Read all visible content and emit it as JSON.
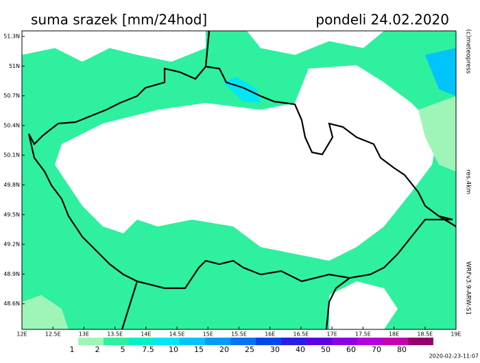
{
  "header": {
    "title": "suma srazek [mm/24hod]",
    "date": "pondeli 24.02.2020"
  },
  "side_labels": {
    "copyright": "(c)meteopress",
    "resolution": "res.4km",
    "model": "WRFv3.9-ARW-S1"
  },
  "map": {
    "lat_labels": [
      "51.3N",
      "51N",
      "50.7N",
      "50.4N",
      "50.1N",
      "49.8N",
      "49.5N",
      "49.2N",
      "48.9N",
      "48.6N"
    ],
    "lon_labels": [
      "12E",
      "12.5E",
      "13E",
      "13.5E",
      "14E",
      "14.5E",
      "15E",
      "15.5E",
      "16E",
      "16.5E",
      "17E",
      "17.5E",
      "18E",
      "18.5E",
      "19E"
    ]
  },
  "colorbar": {
    "labels": [
      1,
      2,
      5,
      7.5,
      10,
      15,
      20,
      25,
      30,
      40,
      50,
      60,
      70,
      80
    ],
    "colors": [
      "#ffffff",
      "#9ff5b8",
      "#2ef09e",
      "#00f0c8",
      "#00e6f5",
      "#00c4fa",
      "#009cf8",
      "#0074f5",
      "#0048ec",
      "#2a1ee6",
      "#5c00e6",
      "#8c00e6",
      "#b400de",
      "#c600b0",
      "#96006e"
    ]
  },
  "footer": {
    "timestamp": "2020-02-23-11:07"
  }
}
